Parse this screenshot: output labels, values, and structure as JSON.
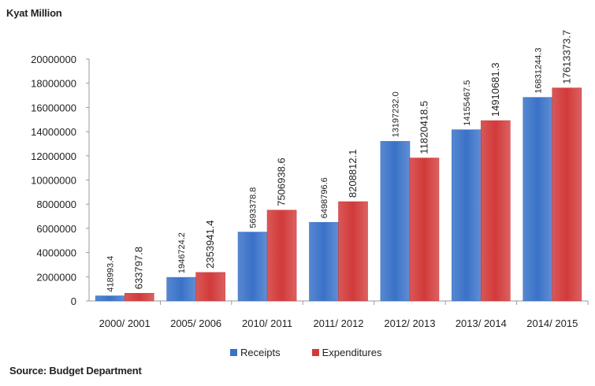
{
  "unit_label": "Kyat Million",
  "source": "Source: Budget Department",
  "colors": {
    "receipts": "#3a72c8",
    "expenditures": "#d23a3a",
    "axis": "#9a9a9a",
    "text": "#222222"
  },
  "chart_data": {
    "type": "bar",
    "title": "",
    "xlabel": "",
    "ylabel": "Kyat Million",
    "ylim": [
      0,
      20000000
    ],
    "yticks": [
      "0",
      "2000000",
      "4000000",
      "6000000",
      "8000000",
      "10000000",
      "12000000",
      "14000000",
      "16000000",
      "18000000",
      "20000000"
    ],
    "grid": false,
    "legend_position": "bottom",
    "categories": [
      "2000/ 2001",
      "2005/ 2006",
      "2010/ 2011",
      "2011/ 2012",
      "2012/ 2013",
      "2013/ 2014",
      "2014/ 2015"
    ],
    "series": [
      {
        "name": "Receipts",
        "values": [
          418993.4,
          1946724.2,
          5693378.8,
          6498796.6,
          13197232.0,
          14155467.5,
          16831244.3
        ],
        "labels": [
          "418993.4",
          "1946724.2",
          "5693378.8",
          "6498796.6",
          "13197232.0",
          "14155467.5",
          "16831244.3"
        ]
      },
      {
        "name": "Expenditures",
        "values": [
          633797.8,
          2353941.4,
          7506938.6,
          8208812.1,
          11820418.5,
          14910681.3,
          17613373.7
        ],
        "labels": [
          "633797.8",
          "2353941.4",
          "7506938.6",
          "8208812.1",
          "11820418.5",
          "14910681.3",
          "17613373.7"
        ]
      }
    ]
  }
}
